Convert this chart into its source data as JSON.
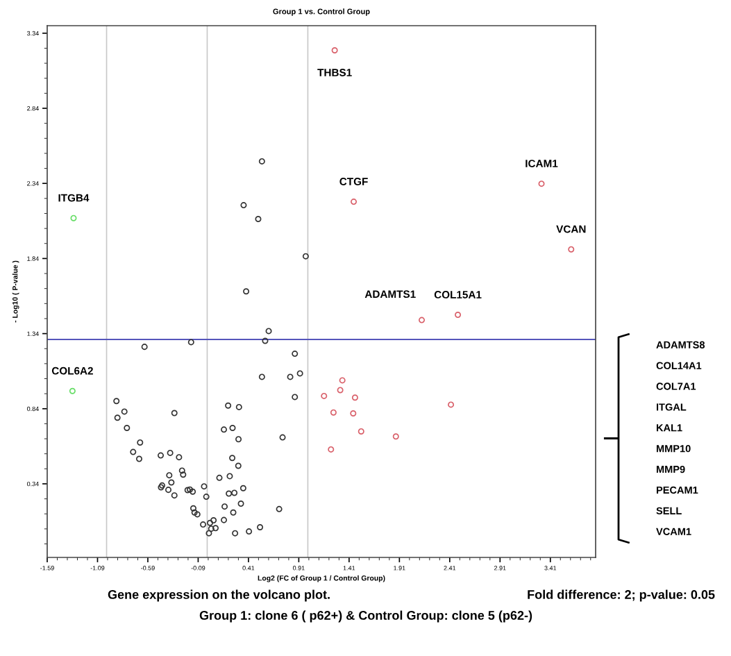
{
  "chart_data": {
    "type": "scatter",
    "title": "Group 1 vs. Control Group",
    "xlabel": "Log2 (FC of Group 1 / Control Group)",
    "ylabel": "- Log10 ( P-value )",
    "xlim": [
      -1.59,
      3.86
    ],
    "ylim": [
      -0.15,
      3.39
    ],
    "xticks": [
      -1.59,
      -1.09,
      -0.59,
      -0.09,
      0.41,
      0.91,
      1.41,
      1.91,
      2.41,
      2.91,
      3.41
    ],
    "yticks": [
      0.34,
      0.84,
      1.34,
      1.84,
      2.34,
      2.84,
      3.34
    ],
    "marker": "circle",
    "grid": false,
    "legend": false,
    "series": [
      {
        "color": "#66dd66",
        "x": [
          -1.328,
          -1.339
        ],
        "values": [
          2.109,
          0.958
        ]
      },
      {
        "color": "#333333",
        "x": [
          0.544,
          0.362,
          0.507,
          0.979,
          0.387,
          0.611,
          0.576,
          -0.16,
          -0.623,
          0.871,
          0.544,
          0.825,
          0.922,
          0.871,
          -0.902,
          -0.823,
          -0.892,
          -0.798,
          -0.326,
          0.208,
          0.316,
          0.166,
          0.252,
          0.311,
          0.749,
          -0.667,
          -0.736,
          -0.676,
          -0.462,
          -0.368,
          -0.28,
          0.249,
          0.309,
          -0.25,
          -0.239,
          -0.377,
          0.121,
          0.224,
          -0.356,
          -0.448,
          -0.459,
          -0.386,
          -0.326,
          -0.195,
          -0.172,
          -0.144,
          -0.031,
          -0.009,
          0.215,
          0.27,
          0.358,
          0.173,
          0.335,
          0.259,
          0.715,
          -0.138,
          -0.126,
          -0.098,
          -0.041,
          0.028,
          0.063,
          0.166,
          0.04,
          0.083,
          0.017,
          0.277,
          0.415,
          0.525
        ],
        "values": [
          2.487,
          2.195,
          2.103,
          1.855,
          1.621,
          1.357,
          1.292,
          1.283,
          1.252,
          1.206,
          1.052,
          1.052,
          1.075,
          0.918,
          0.891,
          0.821,
          0.78,
          0.712,
          0.811,
          0.861,
          0.851,
          0.701,
          0.712,
          0.637,
          0.649,
          0.615,
          0.552,
          0.506,
          0.529,
          0.546,
          0.517,
          0.512,
          0.46,
          0.428,
          0.401,
          0.397,
          0.38,
          0.391,
          0.349,
          0.329,
          0.317,
          0.3,
          0.263,
          0.298,
          0.302,
          0.288,
          0.323,
          0.254,
          0.275,
          0.28,
          0.311,
          0.189,
          0.208,
          0.149,
          0.172,
          0.177,
          0.149,
          0.137,
          0.069,
          0.08,
          0.097,
          0.099,
          0.041,
          0.045,
          0.011,
          0.011,
          0.023,
          0.051
        ]
      },
      {
        "color": "#d9606a",
        "x": [
          1.267,
          1.456,
          3.322,
          3.617,
          2.491,
          2.132,
          1.343,
          1.322,
          1.161,
          1.469,
          1.255,
          1.451,
          1.53,
          1.875,
          1.23,
          2.422
        ],
        "values": [
          3.226,
          2.218,
          2.338,
          1.901,
          1.465,
          1.43,
          1.029,
          0.964,
          0.925,
          0.914,
          0.815,
          0.809,
          0.689,
          0.655,
          0.569,
          0.867
        ]
      }
    ],
    "ref_lines": [
      {
        "axis": "x",
        "value": -1,
        "color": "#c8c8c8"
      },
      {
        "axis": "x",
        "value": 0,
        "color": "#c8c8c8"
      },
      {
        "axis": "x",
        "value": 1,
        "color": "#c8c8c8"
      },
      {
        "axis": "y",
        "value": 1.301,
        "color": "#5555bb"
      }
    ],
    "annotations": [
      {
        "text": "THBS1",
        "x": 1.267,
        "y": 3.226
      },
      {
        "text": "CTGF",
        "x": 1.456,
        "y": 2.218
      },
      {
        "text": "ICAM1",
        "x": 3.322,
        "y": 2.338
      },
      {
        "text": "VCAN",
        "x": 3.617,
        "y": 1.901
      },
      {
        "text": "COL15A1",
        "x": 2.491,
        "y": 1.465
      },
      {
        "text": "ADAMTS1",
        "x": 2.132,
        "y": 1.43
      },
      {
        "text": "ITGB4",
        "x": -1.328,
        "y": 2.109
      },
      {
        "text": "COL6A2",
        "x": -1.339,
        "y": 0.958
      },
      "ADAMTS8",
      "COL14A1",
      "COL7A1",
      "ITGAL",
      "KAL1",
      "MMP10",
      "MMP9",
      "PECAM1",
      "SELL",
      "VCAM1",
      "Gene expression on the volcano plot.",
      "Fold difference: 2; p-value: 0.05",
      "Group 1: clone 6 ( p62+) & Control Group: clone 5 (p62-)"
    ]
  }
}
